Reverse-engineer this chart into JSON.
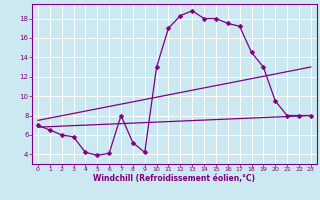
{
  "xlabel": "Windchill (Refroidissement éolien,°C)",
  "bg_color": "#cce8f0",
  "line_color": "#800080",
  "axis_color": "#800080",
  "grid_color": "#ffffff",
  "xlim": [
    -0.5,
    23.5
  ],
  "ylim": [
    3.0,
    19.5
  ],
  "xticks": [
    0,
    1,
    2,
    3,
    4,
    5,
    6,
    7,
    8,
    9,
    10,
    11,
    12,
    13,
    14,
    15,
    16,
    17,
    18,
    19,
    20,
    21,
    22,
    23
  ],
  "yticks": [
    4,
    6,
    8,
    10,
    12,
    14,
    16,
    18
  ],
  "curve1_x": [
    0,
    1,
    2,
    3,
    4,
    5,
    6,
    7,
    8,
    9,
    10,
    11,
    12,
    13,
    14,
    15,
    16,
    17,
    18,
    19,
    20,
    21,
    22,
    23
  ],
  "curve1_y": [
    7.0,
    6.5,
    6.0,
    5.8,
    4.2,
    3.9,
    4.1,
    8.0,
    5.2,
    4.2,
    13.0,
    17.0,
    18.3,
    18.8,
    18.0,
    18.0,
    17.5,
    17.2,
    14.5,
    13.0,
    9.5,
    8.0,
    8.0,
    8.0
  ],
  "line2_x": [
    0,
    23
  ],
  "line2_y": [
    6.8,
    8.0
  ],
  "line3_x": [
    0,
    23
  ],
  "line3_y": [
    7.5,
    13.0
  ],
  "marker": "D",
  "markersize": 2.5,
  "linewidth": 0.9,
  "tick_fontsize": 4.5,
  "xlabel_fontsize": 5.5
}
